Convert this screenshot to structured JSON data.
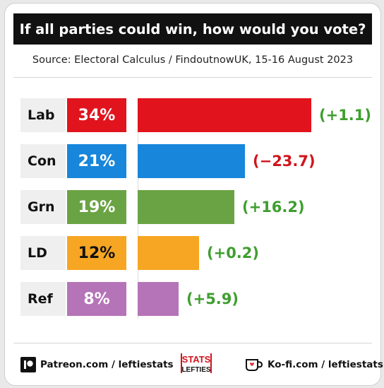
{
  "header": {
    "title": "If all parties could win, how would you vote?",
    "source": "Source: Electoral Calculus / FindoutnowUK, 15-16 August 2023"
  },
  "chart_data": {
    "type": "bar",
    "categories": [
      "Lab",
      "Con",
      "Grn",
      "LD",
      "Ref"
    ],
    "values": [
      34,
      21,
      19,
      12,
      8
    ],
    "value_labels": [
      "34%",
      "21%",
      "19%",
      "12%",
      "8%"
    ],
    "changes": [
      "(+1.1)",
      "(−23.7)",
      "(+16.2)",
      "(+0.2)",
      "(+5.9)"
    ],
    "change_values": [
      1.1,
      -23.7,
      16.2,
      0.2,
      5.9
    ],
    "colors": [
      "#e1141e",
      "#1786db",
      "#6aa343",
      "#f6a623",
      "#b574b8"
    ],
    "change_colors": [
      "#3f9e2f",
      "#d0141c",
      "#3f9e2f",
      "#3f9e2f",
      "#3f9e2f"
    ],
    "unit": "%",
    "orientation": "horizontal",
    "title": "If all parties could win, how would you vote?",
    "xlabel": "",
    "ylabel": ""
  },
  "footer": {
    "patreon": "Patreon.com / leftiestats",
    "kofi": "Ko-fi.com / leftiestats",
    "logo_top": "STATS",
    "logo_bottom": "LEFTIES"
  }
}
